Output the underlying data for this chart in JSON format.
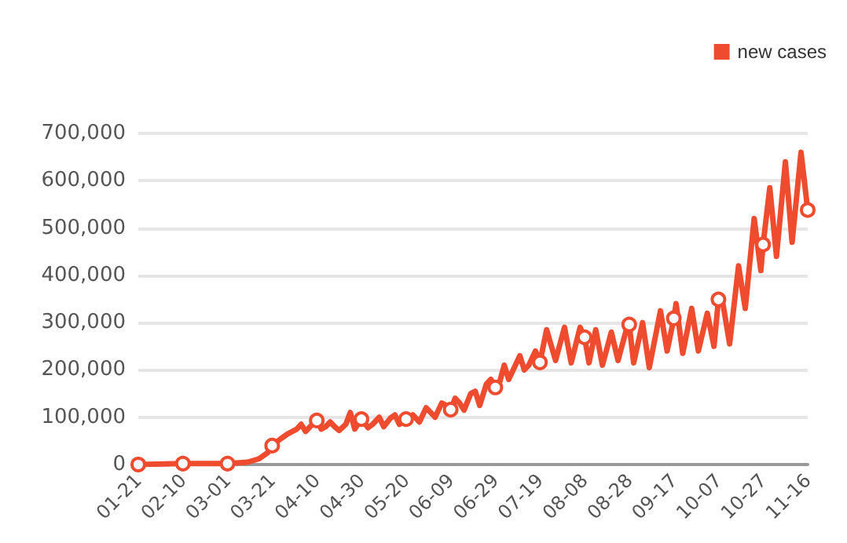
{
  "chart_data": {
    "type": "line",
    "legend": "top right",
    "grid": "y",
    "line_style": "solid",
    "xlim": [
      "--01-21",
      "--11-16"
    ],
    "xticks": [
      {
        "value": "--01-21",
        "label": "01-21"
      },
      {
        "value": "--02-10",
        "label": "02-10"
      },
      {
        "value": "--03-01",
        "label": "03-01"
      },
      {
        "value": "--03-21",
        "label": "03-21"
      },
      {
        "value": "--04-10",
        "label": "04-10"
      },
      {
        "value": "--04-30",
        "label": "04-30"
      },
      {
        "value": "--05-20",
        "label": "05-20"
      },
      {
        "value": "--06-09",
        "label": "06-09"
      },
      {
        "value": "--06-29",
        "label": "06-29"
      },
      {
        "value": "--07-19",
        "label": "07-19"
      },
      {
        "value": "--08-08",
        "label": "08-08"
      },
      {
        "value": "--08-28",
        "label": "08-28"
      },
      {
        "value": "--09-17",
        "label": "09-17"
      },
      {
        "value": "--10-07",
        "label": "10-07"
      },
      {
        "value": "--10-27",
        "label": "10-27"
      },
      {
        "value": "--11-16",
        "label": "11-16"
      }
    ],
    "ylim": [
      0,
      700000
    ],
    "yticks": [
      {
        "value": 0,
        "label": "0"
      },
      {
        "value": 100000,
        "label": "100,000"
      },
      {
        "value": 200000,
        "label": "200,000"
      },
      {
        "value": 300000,
        "label": "300,000"
      },
      {
        "value": 400000,
        "label": "400,000"
      },
      {
        "value": 500000,
        "label": "500,000"
      },
      {
        "value": 600000,
        "label": "600,000"
      },
      {
        "value": 700000,
        "label": "700,000"
      }
    ],
    "series": [
      {
        "name": "new cases",
        "color": "#ee4b2f",
        "x": [
          "--01-21",
          "--02-10",
          "--03-01",
          "--03-10",
          "--03-15",
          "--03-19",
          "--03-21",
          "--03-25",
          "--03-28",
          "--04-01",
          "--04-03",
          "--04-05",
          "--04-07",
          "--04-10",
          "--04-12",
          "--04-14",
          "--04-16",
          "--04-18",
          "--04-20",
          "--04-23",
          "--04-25",
          "--04-27",
          "--04-30",
          "--05-03",
          "--05-05",
          "--05-08",
          "--05-10",
          "--05-13",
          "--05-15",
          "--05-17",
          "--05-20",
          "--05-23",
          "--05-26",
          "--05-29",
          "--05-31",
          "--06-02",
          "--06-05",
          "--06-07",
          "--06-09",
          "--06-11",
          "--06-13",
          "--06-15",
          "--06-18",
          "--06-20",
          "--06-22",
          "--06-25",
          "--06-27",
          "--06-29",
          "--07-01",
          "--07-03",
          "--07-05",
          "--07-07",
          "--07-10",
          "--07-12",
          "--07-14",
          "--07-16",
          "--07-17",
          "--07-19",
          "--07-22",
          "--07-26",
          "--07-30",
          "--08-02",
          "--08-06",
          "--08-08",
          "--08-10",
          "--08-13",
          "--08-16",
          "--08-20",
          "--08-23",
          "--08-27",
          "--08-28",
          "--08-30",
          "--09-03",
          "--09-06",
          "--09-11",
          "--09-14",
          "--09-17",
          "--09-18",
          "--09-21",
          "--09-25",
          "--09-28",
          "--10-02",
          "--10-05",
          "--10-07",
          "--10-09",
          "--10-12",
          "--10-16",
          "--10-19",
          "--10-23",
          "--10-26",
          "--10-27",
          "--10-30",
          "--11-02",
          "--11-06",
          "--11-09",
          "--11-13",
          "--11-16"
        ],
        "values": [
          0,
          2000,
          2000,
          5000,
          12000,
          25000,
          40000,
          55000,
          65000,
          75000,
          85000,
          70000,
          80000,
          93000,
          75000,
          80000,
          90000,
          80000,
          72000,
          85000,
          110000,
          75000,
          96000,
          78000,
          85000,
          100000,
          80000,
          98000,
          105000,
          85000,
          96000,
          105000,
          90000,
          120000,
          110000,
          100000,
          130000,
          125000,
          116000,
          140000,
          130000,
          115000,
          150000,
          155000,
          125000,
          170000,
          180000,
          163000,
          175000,
          210000,
          180000,
          200000,
          230000,
          200000,
          210000,
          230000,
          240000,
          216000,
          285000,
          220000,
          290000,
          215000,
          290000,
          269000,
          215000,
          285000,
          210000,
          280000,
          220000,
          290000,
          296000,
          215000,
          300000,
          205000,
          325000,
          240000,
          309000,
          340000,
          235000,
          330000,
          240000,
          320000,
          250000,
          349000,
          340000,
          255000,
          420000,
          330000,
          520000,
          410000,
          465000,
          585000,
          440000,
          640000,
          470000,
          660000,
          538000
        ]
      }
    ]
  }
}
